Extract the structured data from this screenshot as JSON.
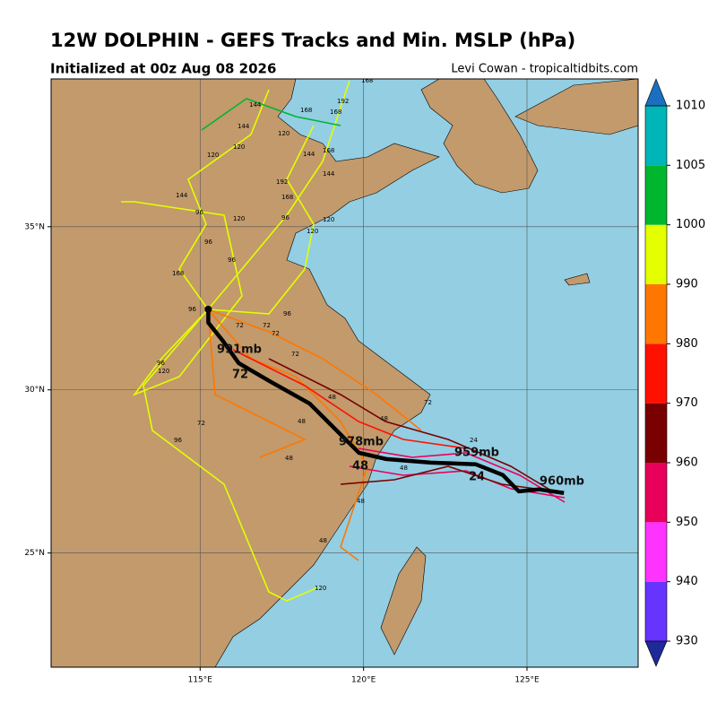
{
  "chart_data": {
    "type": "map",
    "title": "12W DOLPHIN - GEFS Tracks and Min. MSLP (hPa)",
    "subtitle": "Initialized at 00z Aug 08 2026",
    "credit": "Levi Cowan - tropicaltidbits.com",
    "xlim": [
      110.44,
      128.4
    ],
    "ylim": [
      21.5,
      39.53
    ],
    "xticks": [
      {
        "value": 115,
        "label": "115°E"
      },
      {
        "value": 120,
        "label": "120°E"
      },
      {
        "value": 125,
        "label": "125°E"
      }
    ],
    "yticks": [
      {
        "value": 25,
        "label": "25°N"
      },
      {
        "value": 30,
        "label": "30°N"
      },
      {
        "value": 35,
        "label": "35°N"
      }
    ],
    "grid": true,
    "mean_track": {
      "color": "#000000",
      "lon": [
        115.25,
        115.25,
        115.69,
        116.18,
        117.12,
        118.35,
        119.31,
        119.86,
        120.69,
        122.06,
        123.43,
        124.26,
        124.75,
        125.36,
        126.13
      ],
      "lat": [
        32.47,
        32.06,
        31.51,
        30.82,
        30.27,
        29.58,
        28.62,
        28.07,
        27.88,
        27.77,
        27.72,
        27.39,
        26.89,
        26.95,
        26.84
      ]
    },
    "mean_labels": [
      "991mb",
      "72",
      "978mb",
      "48",
      "959mb",
      "24",
      "960mb"
    ],
    "hour_labels": [
      "168",
      "192",
      "168",
      "168",
      "144",
      "144",
      "120",
      "120",
      "144",
      "168",
      "120",
      "144",
      "144",
      "192",
      "168",
      "96",
      "120",
      "120",
      "120",
      "96",
      "96",
      "168",
      "96",
      "96",
      "72",
      "72",
      "72",
      "72",
      "96",
      "96",
      "120",
      "72",
      "72",
      "48",
      "48",
      "48",
      "48",
      "48",
      "24",
      "48",
      "48",
      "120",
      "96"
    ],
    "colorbar": {
      "ticks": [
        930,
        940,
        950,
        960,
        970,
        980,
        990,
        1000,
        1005,
        1010
      ],
      "colors": [
        "#6633ff",
        "#ff33ff",
        "#e8005a",
        "#780000",
        "#ff1100",
        "#ff7700",
        "#e3ff00",
        "#00b62e",
        "#00b5b8"
      ],
      "under": "#1f2a99",
      "over": "#1a6fc0"
    }
  }
}
